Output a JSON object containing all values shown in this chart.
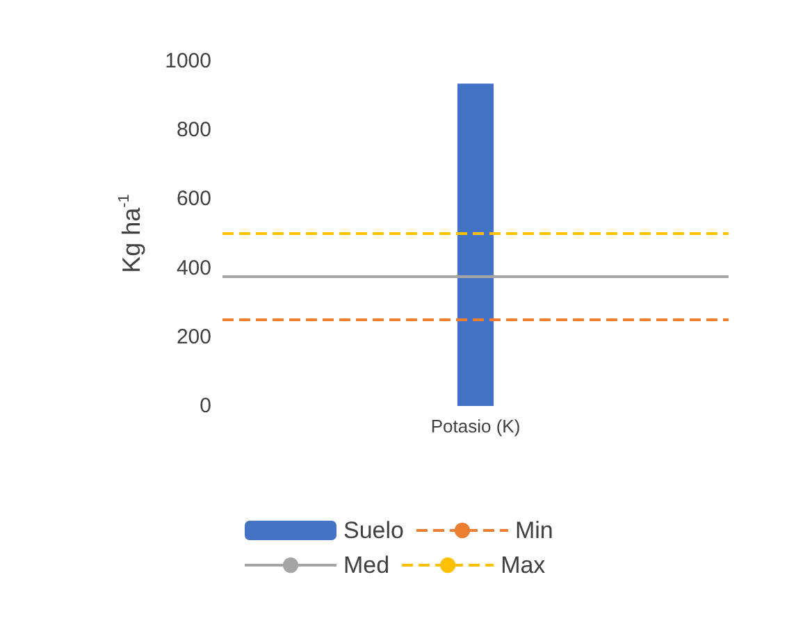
{
  "chart_data": {
    "type": "bar",
    "ylabel": "Kg ha$^{-1}$",
    "categories": [
      "Potasio (K)"
    ],
    "series": [
      {
        "name": "Suelo",
        "color": "#4472c4",
        "values": [
          935
        ]
      }
    ],
    "ylim": [
      0,
      1000
    ],
    "yticks": [
      0,
      200,
      400,
      600,
      800,
      1000
    ],
    "grid": false,
    "legend": "bottom",
    "ref_lines": [
      {
        "axis": "y",
        "value": 250,
        "label": "Min",
        "color": "#ed7d31",
        "line_style": "dashed"
      },
      {
        "axis": "y",
        "value": 375,
        "label": "Med",
        "color": "#a5a5a5",
        "line_style": "solid"
      },
      {
        "axis": "y",
        "value": 500,
        "label": "Max",
        "color": "#ffc000",
        "line_style": "dashed"
      }
    ]
  }
}
